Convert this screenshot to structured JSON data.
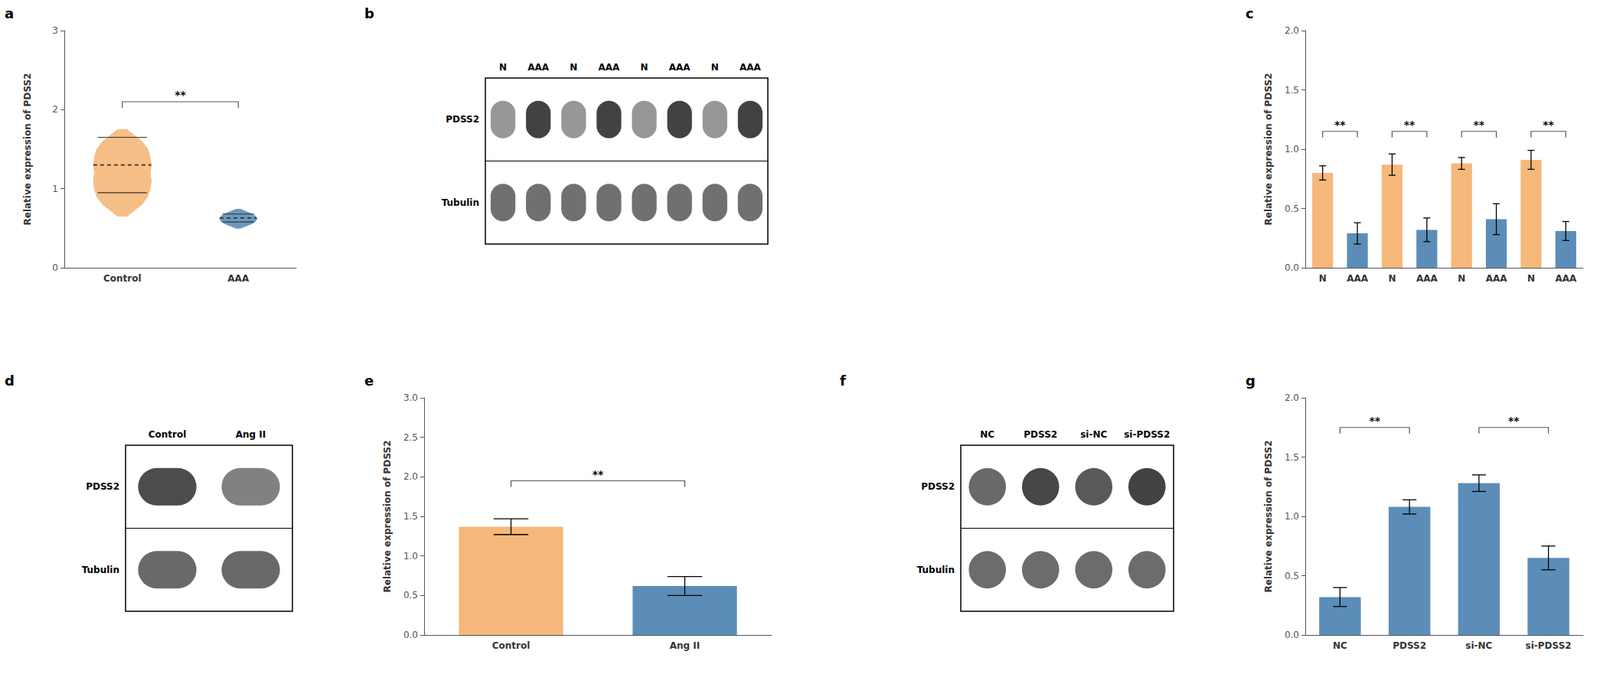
{
  "chart_data": [
    {
      "type": "violin",
      "title": "a",
      "ylabel": "Relative expression of PDSS2",
      "categories": [
        "Control",
        "AAA"
      ],
      "colors": [
        "#F5B87A",
        "#5B8DB8"
      ],
      "violins": [
        {
          "y": [
            0.65,
            0.72,
            0.8,
            0.9,
            1.0,
            1.1,
            1.2,
            1.3,
            1.4,
            1.5,
            1.6,
            1.68,
            1.75
          ],
          "density": [
            0.04,
            0.1,
            0.17,
            0.22,
            0.24,
            0.25,
            0.24,
            0.25,
            0.24,
            0.22,
            0.17,
            0.1,
            0.04
          ],
          "median": 1.3,
          "q1": 0.95,
          "q3": 1.65
        },
        {
          "y": [
            0.5,
            0.53,
            0.56,
            0.59,
            0.62,
            0.65,
            0.68,
            0.71,
            0.74
          ],
          "density": [
            0.02,
            0.07,
            0.12,
            0.15,
            0.16,
            0.15,
            0.12,
            0.07,
            0.02
          ],
          "median": 0.63,
          "q1": 0.58,
          "q3": 0.68
        }
      ],
      "annotations": [
        {
          "text": "**",
          "y": 2.1,
          "between": [
            0,
            1
          ]
        }
      ],
      "ylim": [
        0,
        3
      ],
      "yticks": [
        0,
        1,
        2,
        3
      ],
      "grid": false
    },
    {
      "type": "blot",
      "title": "b",
      "categories": [
        "N",
        "AAA",
        "N",
        "AAA",
        "N",
        "AAA",
        "N",
        "AAA"
      ],
      "annotations": [
        "PDSS2",
        "Tubulin"
      ]
    },
    {
      "type": "bar",
      "title": "c",
      "ylabel": "Relative expression of PDSS2",
      "categories": [
        "N",
        "AAA",
        "N",
        "AAA",
        "N",
        "AAA",
        "N",
        "AAA"
      ],
      "values": [
        0.8,
        0.29,
        0.87,
        0.32,
        0.88,
        0.41,
        0.91,
        0.31
      ],
      "errors": [
        0.06,
        0.09,
        0.09,
        0.1,
        0.05,
        0.13,
        0.08,
        0.08
      ],
      "colors": [
        "#F5B87A",
        "#5B8DB8",
        "#F5B87A",
        "#5B8DB8",
        "#F5B87A",
        "#5B8DB8",
        "#F5B87A",
        "#5B8DB8"
      ],
      "annotations": [
        {
          "text": "**",
          "y": 1.15,
          "between": [
            0,
            1
          ]
        },
        {
          "text": "**",
          "y": 1.15,
          "between": [
            2,
            3
          ]
        },
        {
          "text": "**",
          "y": 1.15,
          "between": [
            4,
            5
          ]
        },
        {
          "text": "**",
          "y": 1.15,
          "between": [
            6,
            7
          ]
        }
      ],
      "ylim": [
        0,
        2.0
      ],
      "yticks": [
        {
          "value": 0,
          "label": "0.0"
        },
        0.5,
        {
          "value": 1,
          "label": "1.0"
        },
        1.5,
        {
          "value": 2,
          "label": "2.0"
        }
      ],
      "grid": false
    },
    {
      "type": "blot",
      "title": "d",
      "categories": [
        "Control",
        "Ang II"
      ],
      "annotations": [
        "PDSS2",
        "Tubulin"
      ]
    },
    {
      "type": "bar",
      "title": "e",
      "ylabel": "Relative expression of PDSS2",
      "categories": [
        "Control",
        "Ang II"
      ],
      "values": [
        1.37,
        0.62
      ],
      "errors": [
        0.1,
        0.12
      ],
      "colors": [
        "#F5B87A",
        "#5B8DB8"
      ],
      "annotations": [
        {
          "text": "**",
          "y": 1.95,
          "between": [
            0,
            1
          ]
        }
      ],
      "ylim": [
        0,
        3.0
      ],
      "yticks": [
        {
          "value": 0,
          "label": "0.0"
        },
        0.5,
        {
          "value": 1,
          "label": "1.0"
        },
        1.5,
        {
          "value": 2,
          "label": "2.0"
        },
        2.5,
        {
          "value": 3,
          "label": "3.0"
        }
      ],
      "grid": false
    },
    {
      "type": "blot",
      "title": "f",
      "categories": [
        "NC",
        "PDSS2",
        "si-NC",
        "si-PDSS2"
      ],
      "annotations": [
        "PDSS2",
        "Tubulin"
      ]
    },
    {
      "type": "bar",
      "title": "g",
      "ylabel": "Relative expression of PDSS2",
      "categories": [
        "NC",
        "PDSS2",
        "si-NC",
        "si-PDSS2"
      ],
      "values": [
        0.32,
        1.08,
        1.28,
        0.65
      ],
      "errors": [
        0.08,
        0.06,
        0.07,
        0.1
      ],
      "color": "#5B8DB8",
      "annotations": [
        {
          "text": "**",
          "y": 1.75,
          "between": [
            0,
            1
          ]
        },
        {
          "text": "**",
          "y": 1.75,
          "between": [
            2,
            3
          ]
        }
      ],
      "ylim": [
        0,
        2.0
      ],
      "yticks": [
        {
          "value": 0,
          "label": "0.0"
        },
        0.5,
        {
          "value": 1,
          "label": "1.0"
        },
        1.5,
        {
          "value": 2,
          "label": "2.0"
        }
      ],
      "grid": false
    }
  ]
}
